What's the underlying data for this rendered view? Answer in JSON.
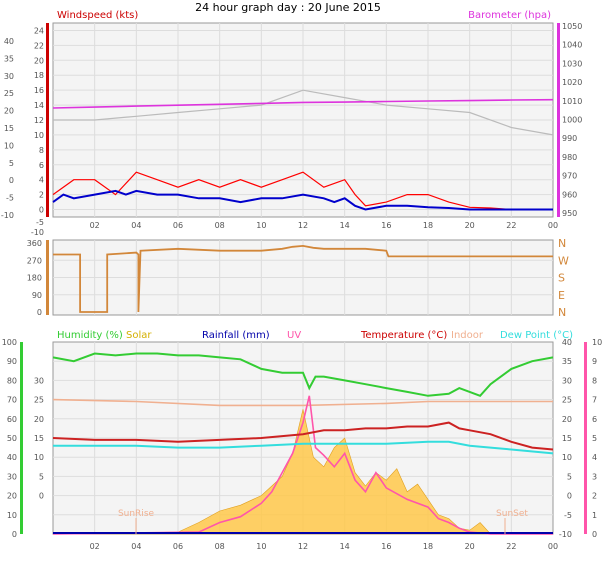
{
  "title": "24 hour graph day : 20 June 2015",
  "chart_data": [
    {
      "type": "line",
      "panel": "wind_baro",
      "legend": {
        "windspeed": "Windspeed (kts)",
        "barometer": "Barometer (hpa)"
      },
      "colors": {
        "windspeed": "#cc0000",
        "gust": "#ff0000",
        "avgwind": "#0000cc",
        "barometer": "#dd33dd",
        "winddir": "#bbbbbb"
      },
      "x_ticks": [
        "02",
        "04",
        "06",
        "08",
        "10",
        "12",
        "14",
        "16",
        "18",
        "20",
        "22",
        "00"
      ],
      "y_left_ticks": [
        "24",
        "22",
        "20",
        "18",
        "16",
        "14",
        "12",
        "10",
        "8",
        "6",
        "4",
        "2",
        "0"
      ],
      "y_left_neg_ticks": [
        "-5",
        "-10"
      ],
      "y_leftmost_ticks": [
        "40",
        "35",
        "30",
        "25",
        "20",
        "15",
        "10",
        "5",
        "0",
        "-5",
        "-10"
      ],
      "y_right_ticks": [
        "1050",
        "1040",
        "1030",
        "1020",
        "1010",
        "1000",
        "990",
        "980",
        "970",
        "960",
        "950"
      ],
      "xlim": [
        0,
        24
      ],
      "ylim_wind": [
        -1,
        25
      ],
      "ylim_baro": [
        947,
        1052
      ],
      "barometer": {
        "x": [
          0,
          2,
          4,
          6,
          8,
          10,
          12,
          14,
          16,
          18,
          20,
          22,
          24
        ],
        "y": [
          1006,
          1006.5,
          1007,
          1007.5,
          1008,
          1008.5,
          1009,
          1009.2,
          1009.5,
          1009.8,
          1010,
          1010.3,
          1010.5
        ]
      },
      "gust": {
        "x": [
          0,
          1,
          2,
          3,
          4,
          5,
          6,
          7,
          8,
          9,
          10,
          11,
          12,
          13,
          14,
          14.5,
          15,
          16,
          17,
          18,
          19,
          20,
          21,
          22,
          24
        ],
        "y": [
          2,
          4,
          4,
          2,
          5,
          4,
          3,
          4,
          3,
          4,
          3,
          4,
          5,
          3,
          4,
          2,
          0.5,
          1,
          2,
          2,
          1,
          0.3,
          0.2,
          0,
          0
        ]
      },
      "avg": {
        "x": [
          0,
          0.5,
          1,
          2,
          3,
          3.5,
          4,
          5,
          6,
          7,
          8,
          9,
          10,
          11,
          12,
          13,
          13.5,
          14,
          14.5,
          15,
          16,
          17,
          18,
          19,
          20,
          21,
          22,
          24
        ],
        "y": [
          1,
          2,
          1.5,
          2,
          2.5,
          2,
          2.5,
          2,
          2,
          1.5,
          1.5,
          1,
          1.5,
          1.5,
          2,
          1.5,
          1,
          1.5,
          0.5,
          0,
          0.5,
          0.5,
          0.3,
          0.2,
          0,
          0,
          0,
          0
        ]
      },
      "winddir_trace": {
        "x": [
          0,
          2,
          4,
          6,
          8,
          10,
          12,
          14,
          16,
          18,
          20,
          22,
          24
        ],
        "y": [
          12,
          12,
          12.5,
          13,
          13.5,
          14,
          16,
          15,
          14,
          13.5,
          13,
          11,
          10
        ]
      }
    },
    {
      "type": "line",
      "panel": "wind_direction",
      "color": "#d2873a",
      "y_left_ticks": [
        "360",
        "270",
        "180",
        "90",
        "0"
      ],
      "y_right_ticks": [
        "N",
        "W",
        "S",
        "E",
        "N"
      ],
      "xlim": [
        0,
        24
      ],
      "ylim": [
        0,
        360
      ],
      "direction": {
        "x": [
          0,
          1.3,
          1.3,
          2.6,
          2.6,
          4,
          4.1,
          4.1,
          4.2,
          6,
          8,
          10,
          11,
          11.5,
          12,
          12.5,
          13,
          15,
          16,
          16.1,
          18,
          20,
          22,
          24
        ],
        "y": [
          300,
          300,
          0,
          0,
          300,
          310,
          300,
          0,
          320,
          330,
          320,
          320,
          330,
          340,
          345,
          335,
          330,
          330,
          320,
          290,
          290,
          290,
          290,
          290
        ]
      }
    },
    {
      "type": "line",
      "panel": "temp_hum",
      "legend": {
        "humidity": "Humidity (%)",
        "solar": "Solar",
        "rainfall": "Rainfall (mm)",
        "uv": "UV",
        "temperature": "Temperature (°C)",
        "indoor": "Indoor",
        "dewpoint": "Dew Point (°C)"
      },
      "colors": {
        "humidity": "#33cc33",
        "solar": "#d4b000",
        "rainfall": "#0000aa",
        "uv": "#ff55aa",
        "temperature": "#cc0000",
        "indoor": "#f0b090",
        "dewpoint": "#33dddd"
      },
      "y_hum_ticks": [
        "100",
        "90",
        "80",
        "70",
        "60",
        "50",
        "40",
        "30",
        "20",
        "10",
        "0"
      ],
      "y_temp_ticks": [
        "30",
        "25",
        "20",
        "15",
        "10",
        "5",
        "0"
      ],
      "y_right_temp_ticks": [
        "40",
        "35",
        "30",
        "25",
        "20",
        "15",
        "10",
        "5",
        "0",
        "-5",
        "-10"
      ],
      "y_right_uv_ticks": [
        "10",
        "9",
        "8",
        "7",
        "6",
        "5",
        "4",
        "3",
        "2",
        "1",
        "0"
      ],
      "sun_labels": {
        "sunrise": "SunRise",
        "sunset": "SunSet"
      },
      "xlim": [
        0,
        24
      ],
      "ylim_temp": [
        -10,
        40
      ],
      "humidity": {
        "x": [
          0,
          1,
          2,
          3,
          4,
          5,
          6,
          7,
          8,
          9,
          10,
          11,
          12,
          12.3,
          12.6,
          13,
          14,
          15,
          16,
          17,
          18,
          19,
          19.5,
          20,
          20.5,
          21,
          22,
          23,
          24
        ],
        "y": [
          92,
          90,
          94,
          93,
          94,
          94,
          93,
          93,
          92,
          91,
          86,
          84,
          84,
          76,
          82,
          82,
          80,
          78,
          76,
          74,
          72,
          73,
          76,
          74,
          72,
          78,
          86,
          90,
          92
        ]
      },
      "temperature": {
        "x": [
          0,
          2,
          4,
          6,
          8,
          10,
          11,
          12,
          13,
          14,
          15,
          16,
          17,
          18,
          19,
          19.5,
          20,
          21,
          22,
          23,
          24
        ],
        "y": [
          15,
          14.5,
          14.5,
          14,
          14.5,
          15,
          15.5,
          16,
          17,
          17,
          17.5,
          17.5,
          18,
          18,
          19,
          17.5,
          17,
          16,
          14,
          12.5,
          12
        ]
      },
      "indoor": {
        "x": [
          0,
          4,
          8,
          12,
          16,
          18,
          20,
          22,
          24
        ],
        "y": [
          25,
          24.5,
          23.5,
          23.5,
          24,
          24.5,
          24.5,
          24.5,
          24.5
        ]
      },
      "dewpoint": {
        "x": [
          0,
          2,
          4,
          6,
          8,
          10,
          12,
          14,
          16,
          18,
          19,
          20,
          21,
          22,
          24
        ],
        "y": [
          13,
          13,
          13,
          12.5,
          12.5,
          13,
          13.5,
          13.5,
          13.5,
          14,
          14,
          13,
          12.5,
          12,
          11
        ]
      },
      "solar": {
        "x": [
          0,
          6,
          7,
          8,
          9,
          10,
          10.5,
          11,
          11.5,
          12,
          12.5,
          13,
          13.5,
          14,
          14.5,
          15,
          15.5,
          16,
          16.5,
          17,
          17.5,
          18,
          18.5,
          19,
          19.5,
          20,
          20.5,
          21,
          24
        ],
        "y": [
          0,
          0.1,
          0.6,
          1.2,
          1.5,
          2,
          2.5,
          3,
          4.2,
          6.5,
          4,
          3.5,
          4.5,
          5,
          3.2,
          2.5,
          3.2,
          2.8,
          3.4,
          2.2,
          2.6,
          1.8,
          1,
          0.8,
          0.3,
          0.2,
          0.6,
          0,
          0
        ]
      },
      "uv": {
        "x": [
          0,
          7,
          8,
          9,
          10,
          10.5,
          11,
          11.5,
          12,
          12.3,
          12.6,
          13,
          13.5,
          14,
          14.5,
          15,
          15.5,
          16,
          17,
          18,
          18.5,
          19,
          19.5,
          20,
          21,
          24
        ],
        "y": [
          0,
          0.1,
          0.6,
          0.9,
          1.6,
          2.2,
          3.2,
          4.2,
          5.8,
          7.2,
          4.5,
          4.1,
          3.5,
          4.2,
          2.8,
          2.2,
          3.2,
          2.4,
          1.8,
          1.4,
          0.8,
          0.6,
          0.3,
          0.1,
          0,
          0
        ]
      },
      "rainfall": {
        "x": [
          0,
          24
        ],
        "y": [
          0,
          0
        ]
      }
    }
  ]
}
